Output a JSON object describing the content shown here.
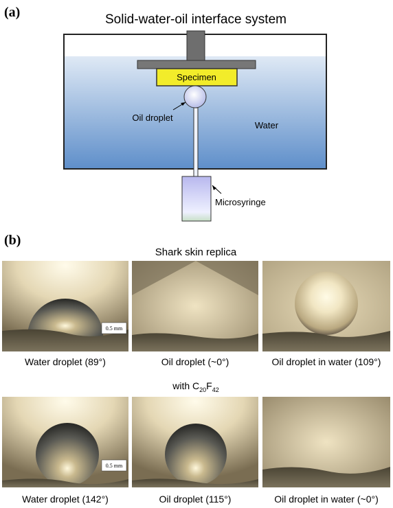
{
  "panel_a": {
    "label": "(a)",
    "title": "Solid-water-oil interface system",
    "labels": {
      "specimen": "Specimen",
      "oil_droplet": "Oil droplet",
      "water": "Water",
      "microsyringe": "Microsyringe"
    }
  },
  "panel_b": {
    "label": "(b)",
    "rows": [
      {
        "title": "Shark skin replica",
        "scale_bar": "0.5 mm",
        "captions": [
          "Water droplet (89°)",
          "Oil droplet (~0°)",
          "Oil droplet in water (109°)"
        ]
      },
      {
        "title": {
          "prefix": "with C",
          "sub1": "20",
          "mid": "F",
          "sub2": "42"
        },
        "scale_bar": "0.5 mm",
        "captions": [
          "Water droplet (142°)",
          "Oil droplet (115°)",
          "Oil droplet in water (~0°)"
        ]
      }
    ]
  }
}
